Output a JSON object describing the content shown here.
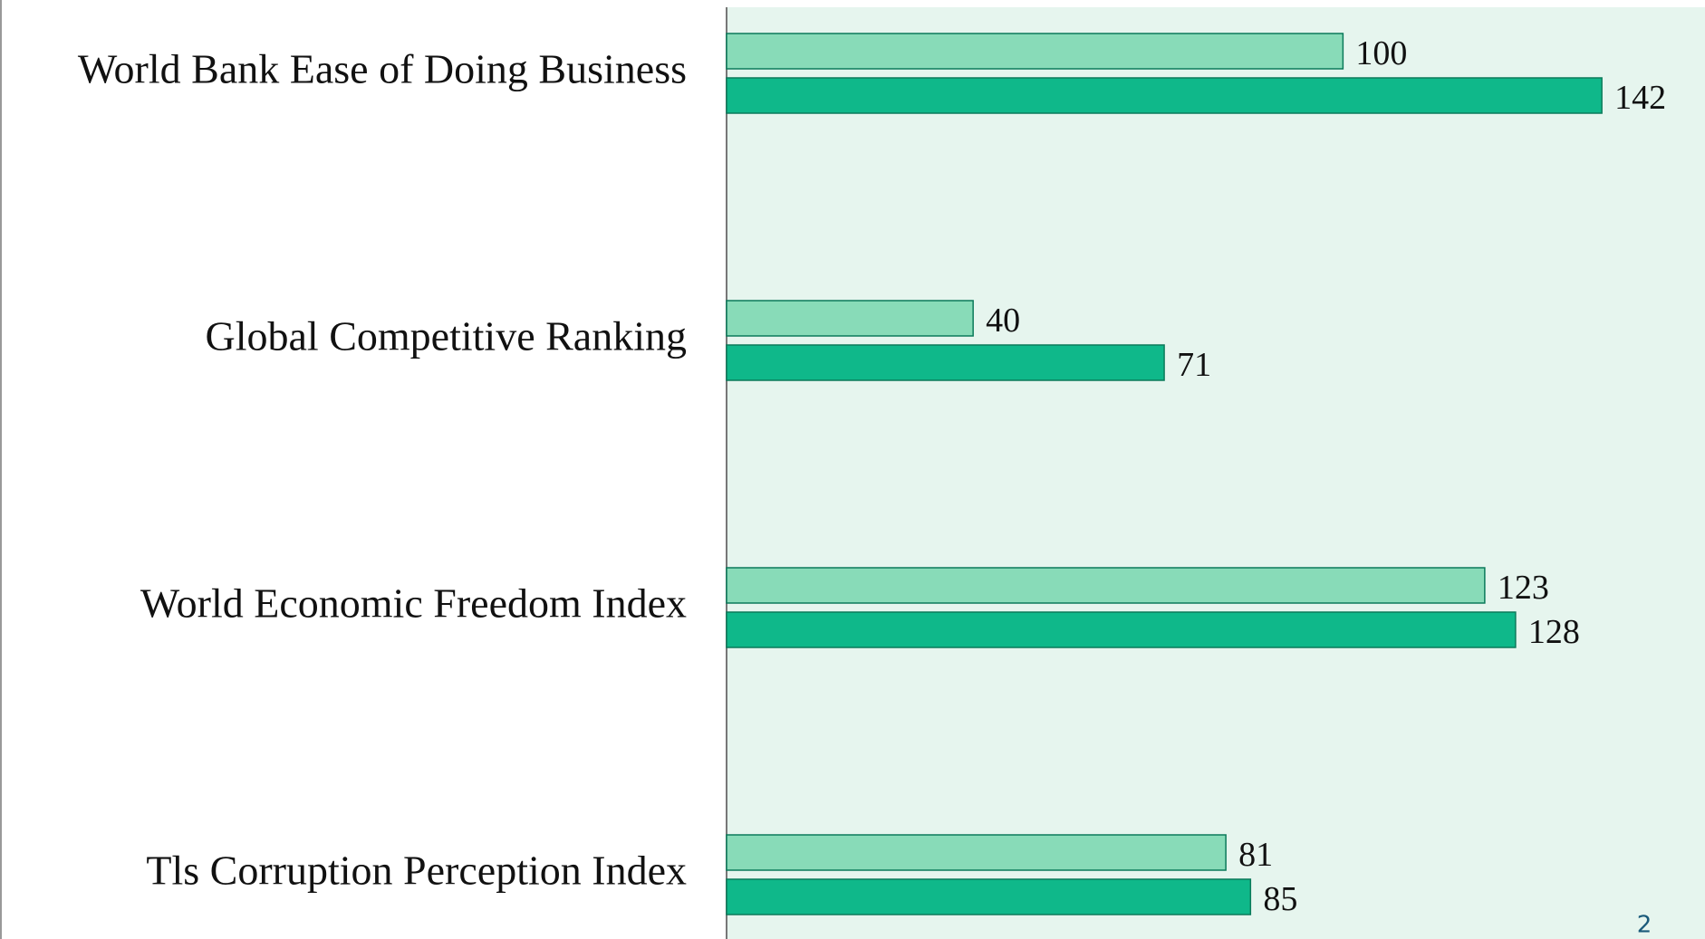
{
  "chart_data": {
    "type": "hbar",
    "categories": [
      "World Bank Ease of Doing Business",
      "Global Competitive Ranking",
      "World Economic Freedom Index",
      "Tls Corruption Perception Index"
    ],
    "series": [
      {
        "color": "#88dbb8",
        "values": [
          100,
          40,
          123,
          81
        ]
      },
      {
        "color": "#0fb88a",
        "values": [
          142,
          71,
          128,
          85
        ]
      }
    ],
    "xlim": [
      0,
      158
    ]
  },
  "page_number": "2"
}
